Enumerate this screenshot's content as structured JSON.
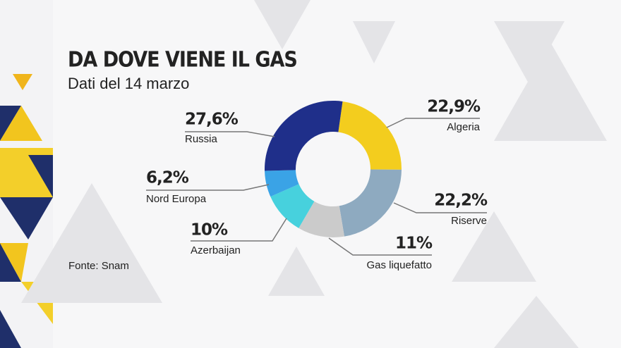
{
  "chart_data": {
    "type": "pie",
    "donut": true,
    "title": "DA DOVE VIENE IL GAS",
    "subtitle": "Dati del 14 marzo",
    "source": "Fonte: Snam",
    "categories": [
      "Algeria",
      "Riserve",
      "Gas liquefatto",
      "Azerbaijan",
      "Nord Europa",
      "Russia"
    ],
    "values": [
      22.9,
      22.2,
      11,
      10,
      6.2,
      27.6
    ],
    "value_labels": [
      "22,9%",
      "22,2%",
      "11%",
      "10%",
      "6,2%",
      "27,6%"
    ],
    "colors": [
      "#f3cd1e",
      "#8eaac0",
      "#cbcbcb",
      "#47d1dd",
      "#3aa3e6",
      "#1f2f8a"
    ]
  }
}
